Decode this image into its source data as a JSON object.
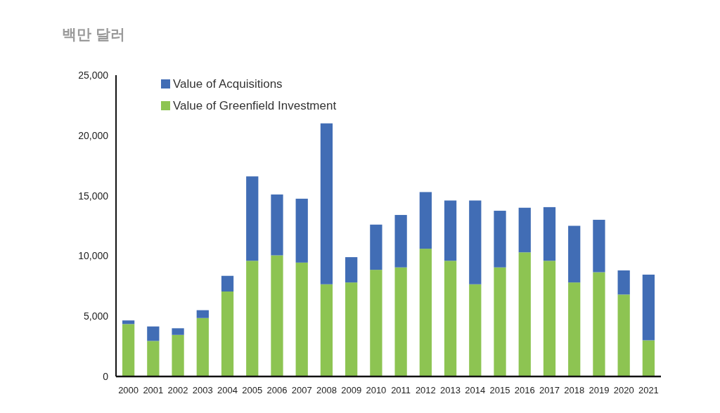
{
  "chart_data": {
    "type": "bar",
    "stacked": true,
    "ylabel": "백만 달러",
    "categories": [
      "2000",
      "2001",
      "2002",
      "2003",
      "2004",
      "2005",
      "2006",
      "2007",
      "2008",
      "2009",
      "2010",
      "2011",
      "2012",
      "2013",
      "2014",
      "2015",
      "2016",
      "2017",
      "2018",
      "2019",
      "2020",
      "2021"
    ],
    "series": [
      {
        "name": "Value of Greenfield Investment",
        "color": "#8dc452",
        "values": [
          4350,
          2950,
          3450,
          4850,
          7050,
          9600,
          10050,
          9450,
          7650,
          7800,
          8850,
          9050,
          10600,
          9600,
          7650,
          9050,
          10300,
          9600,
          7800,
          8650,
          6800,
          3000
        ]
      },
      {
        "name": "Value of Acquisitions",
        "color": "#416db5",
        "values": [
          300,
          1200,
          550,
          650,
          1300,
          7000,
          5050,
          5300,
          13350,
          2100,
          3750,
          4350,
          4700,
          5000,
          6950,
          4700,
          3700,
          4450,
          4700,
          4350,
          2000,
          5450
        ]
      }
    ],
    "ylim": [
      0,
      25000
    ],
    "yticks": [
      0,
      {
        "value": 5000,
        "label": "5,000"
      },
      {
        "value": 10000,
        "label": "10,000"
      },
      {
        "value": 15000,
        "label": "15,000"
      },
      {
        "value": 20000,
        "label": "20,000"
      },
      {
        "value": 25000,
        "label": "25,000"
      }
    ],
    "grid": false,
    "legend": "top left"
  }
}
